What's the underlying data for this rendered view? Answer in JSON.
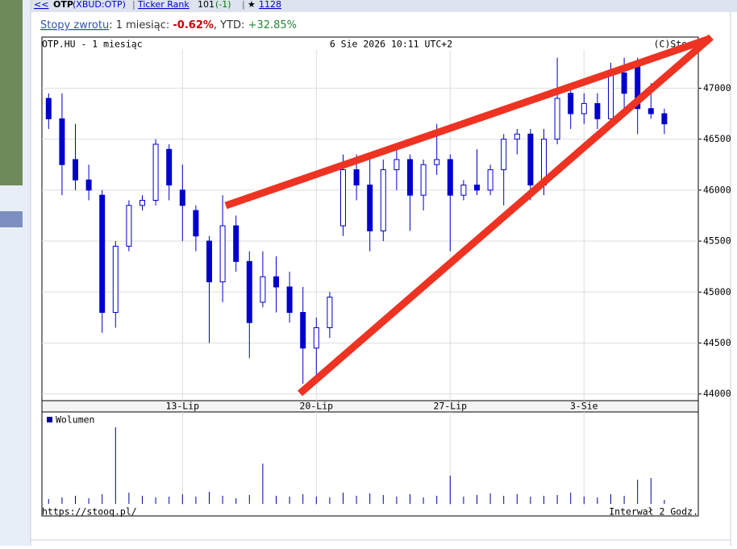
{
  "header": {
    "back": "<<",
    "ticker": "OTP",
    "market": "(XBUD:OTP)",
    "rank_label": "Ticker Rank",
    "rank": "101",
    "rank_change": "(-1)",
    "star": "★",
    "stars": "1128"
  },
  "returns": {
    "link": "Stopy zwrotu",
    "period": ": 1 miesiąc: ",
    "period_value": "-0.62%",
    "ytd_label": ", YTD: ",
    "ytd_value": "+32.85%"
  },
  "chart_data": {
    "type": "candlestick",
    "title": "OTP.HU - 1 miesiąc",
    "subtitle": "6 Sie 2026 10:11 UTC+2",
    "credit": "(C)Stooq",
    "source": "https://stooq.pl/",
    "interval": "Interwał 2 Godz.",
    "categories": [
      null,
      null,
      null,
      null,
      null,
      null,
      null,
      null,
      null,
      null,
      "13-Lip",
      null,
      null,
      null,
      null,
      null,
      null,
      null,
      null,
      null,
      "20-Lip",
      null,
      null,
      null,
      null,
      null,
      null,
      null,
      null,
      null,
      "27-Lip",
      null,
      null,
      null,
      null,
      null,
      null,
      null,
      null,
      null,
      "3-Sie",
      null,
      null,
      null,
      null,
      null,
      null
    ],
    "open": [
      46900,
      46700,
      46300,
      46100,
      45950,
      44800,
      45450,
      45850,
      45900,
      46400,
      46000,
      45800,
      45500,
      45100,
      45650,
      45300,
      44900,
      45150,
      45050,
      44800,
      44450,
      44650,
      45650,
      46200,
      46050,
      45600,
      46200,
      46300,
      45950,
      46250,
      46300,
      45950,
      46050,
      46000,
      46200,
      46500,
      46550,
      46050,
      46500,
      46950,
      46750,
      46850,
      46700,
      47150,
      47250,
      46800,
      46750
    ],
    "high": [
      46950,
      46950,
      46650,
      46250,
      46000,
      45500,
      45900,
      45950,
      46500,
      46450,
      46250,
      45850,
      45550,
      45950,
      45750,
      45400,
      45400,
      45350,
      45200,
      45050,
      44750,
      45000,
      46350,
      46350,
      46300,
      46300,
      46450,
      46350,
      46300,
      46650,
      46350,
      46100,
      46400,
      46250,
      46550,
      46600,
      46600,
      46600,
      47300,
      47000,
      46950,
      46950,
      47250,
      47300,
      47300,
      47050,
      46800
    ],
    "low": [
      46600,
      45950,
      46000,
      45900,
      44600,
      44650,
      45400,
      45800,
      45850,
      45900,
      45500,
      45400,
      44500,
      44900,
      45200,
      44350,
      44850,
      44800,
      44700,
      44100,
      44100,
      44550,
      45550,
      45900,
      45400,
      45500,
      46000,
      45600,
      45800,
      46150,
      45400,
      45900,
      45950,
      45950,
      45850,
      46350,
      45900,
      45950,
      46450,
      46600,
      46650,
      46600,
      46650,
      46800,
      46550,
      46700,
      46550
    ],
    "close": [
      46700,
      46250,
      46100,
      46000,
      44800,
      45450,
      45850,
      45900,
      46450,
      46050,
      45850,
      45550,
      45100,
      45650,
      45300,
      44700,
      45150,
      45050,
      44800,
      44450,
      44650,
      44950,
      46200,
      46050,
      45600,
      46200,
      46300,
      45950,
      46250,
      46300,
      45950,
      46050,
      46000,
      46200,
      46500,
      46550,
      46050,
      46500,
      46900,
      46750,
      46850,
      46700,
      47150,
      46950,
      46800,
      46750,
      46650
    ],
    "up_color": "#ffffff",
    "down_color": "#0000cc",
    "wick_color": "#0000cc",
    "ylim": [
      43950,
      47470
    ],
    "yticks": [
      44000,
      44500,
      45000,
      45500,
      46000,
      46500,
      47000
    ],
    "grid": true,
    "volume": {
      "name": "Wolumen",
      "color": "#000099",
      "values": [
        6,
        8,
        10,
        7,
        12,
        95,
        14,
        10,
        8,
        9,
        12,
        9,
        15,
        10,
        7,
        11,
        50,
        10,
        9,
        12,
        9,
        8,
        14,
        10,
        13,
        11,
        9,
        12,
        8,
        10,
        35,
        9,
        11,
        13,
        10,
        12,
        9,
        10,
        11,
        14,
        9,
        8,
        12,
        10,
        30,
        32,
        5
      ],
      "ylim": [
        0,
        100
      ]
    }
  }
}
